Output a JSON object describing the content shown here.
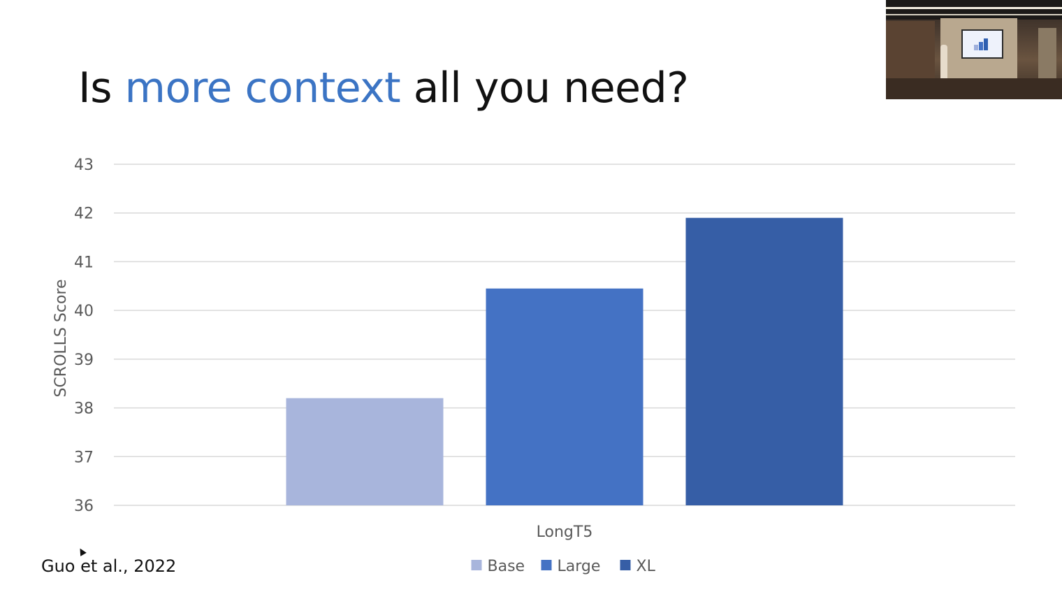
{
  "slide": {
    "title_prefix": "Is ",
    "title_highlight": "more context",
    "title_suffix": " all you need?",
    "citation": "Guo et al., 2022"
  },
  "colors": {
    "highlight": "#3b74c4",
    "gridline": "#d9d9d9",
    "text": "#595959"
  },
  "chart_data": {
    "type": "bar",
    "categories": [
      "LongT5"
    ],
    "series": [
      {
        "name": "Base",
        "values": [
          38.2
        ],
        "color": "#a8b5dc"
      },
      {
        "name": "Large",
        "values": [
          40.45
        ],
        "color": "#4472c4"
      },
      {
        "name": "XL",
        "values": [
          41.9
        ],
        "color": "#365ea6"
      }
    ],
    "title": "",
    "xlabel": "",
    "ylabel": "SCROLLS Score",
    "ylim": [
      36,
      43
    ],
    "yticks": [
      36,
      37,
      38,
      39,
      40,
      41,
      42,
      43
    ],
    "grid": true,
    "legend_position": "bottom"
  }
}
